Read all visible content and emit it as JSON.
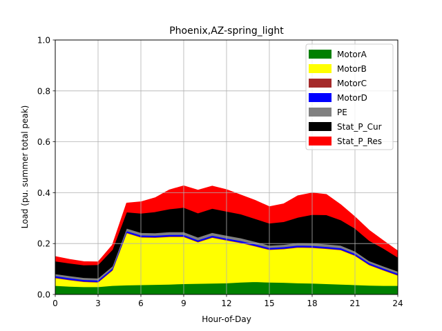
{
  "chart_data": {
    "type": "area",
    "stacked": true,
    "title": "Phoenix,AZ-spring_light",
    "xlabel": "Hour-of-Day",
    "ylabel": "Load (pu. summer total peak)",
    "xlim": [
      0,
      24
    ],
    "ylim": [
      0,
      1.0
    ],
    "xticks": [
      "0",
      "3",
      "6",
      "9",
      "12",
      "15",
      "18",
      "21",
      "24"
    ],
    "yticks": [
      "0.0",
      "0.2",
      "0.4",
      "0.6",
      "0.8",
      "1.0"
    ],
    "grid": true,
    "legend_position": "top-right",
    "x": [
      0,
      1,
      2,
      3,
      4,
      5,
      6,
      7,
      8,
      9,
      10,
      11,
      12,
      13,
      14,
      15,
      16,
      17,
      18,
      19,
      20,
      21,
      22,
      23,
      24
    ],
    "series": [
      {
        "name": "MotorA",
        "color": "#008000",
        "values": [
          0.035,
          0.032,
          0.03,
          0.03,
          0.035,
          0.037,
          0.038,
          0.039,
          0.04,
          0.042,
          0.043,
          0.044,
          0.045,
          0.048,
          0.05,
          0.048,
          0.047,
          0.045,
          0.044,
          0.042,
          0.04,
          0.038,
          0.036,
          0.035,
          0.035
        ]
      },
      {
        "name": "MotorB",
        "color": "#ffff00",
        "values": [
          0.03,
          0.025,
          0.02,
          0.018,
          0.06,
          0.205,
          0.187,
          0.185,
          0.187,
          0.185,
          0.163,
          0.18,
          0.168,
          0.155,
          0.14,
          0.128,
          0.132,
          0.14,
          0.14,
          0.138,
          0.135,
          0.115,
          0.08,
          0.06,
          0.04
        ]
      },
      {
        "name": "MotorC",
        "color": "#a52a2a",
        "values": [
          0.002,
          0.002,
          0.002,
          0.002,
          0.002,
          0.002,
          0.002,
          0.002,
          0.002,
          0.002,
          0.002,
          0.002,
          0.002,
          0.002,
          0.002,
          0.002,
          0.002,
          0.002,
          0.002,
          0.002,
          0.002,
          0.002,
          0.002,
          0.002,
          0.002
        ]
      },
      {
        "name": "MotorD",
        "color": "#0000ff",
        "values": [
          0.006,
          0.006,
          0.006,
          0.006,
          0.006,
          0.006,
          0.006,
          0.006,
          0.006,
          0.006,
          0.006,
          0.006,
          0.006,
          0.006,
          0.006,
          0.006,
          0.006,
          0.006,
          0.006,
          0.006,
          0.006,
          0.006,
          0.006,
          0.006,
          0.006
        ]
      },
      {
        "name": "PE",
        "color": "#808080",
        "values": [
          0.008,
          0.008,
          0.008,
          0.008,
          0.008,
          0.01,
          0.01,
          0.01,
          0.011,
          0.011,
          0.011,
          0.011,
          0.011,
          0.011,
          0.01,
          0.009,
          0.009,
          0.01,
          0.01,
          0.01,
          0.01,
          0.009,
          0.008,
          0.008,
          0.008
        ]
      },
      {
        "name": "Stat_P_Cur",
        "color": "#000000",
        "values": [
          0.05,
          0.05,
          0.05,
          0.053,
          0.065,
          0.064,
          0.076,
          0.083,
          0.09,
          0.096,
          0.095,
          0.095,
          0.095,
          0.094,
          0.09,
          0.087,
          0.09,
          0.1,
          0.112,
          0.115,
          0.1,
          0.09,
          0.08,
          0.07,
          0.055
        ]
      },
      {
        "name": "Stat_P_Res",
        "color": "#ff0000",
        "values": [
          0.018,
          0.015,
          0.013,
          0.011,
          0.018,
          0.035,
          0.045,
          0.055,
          0.075,
          0.085,
          0.09,
          0.088,
          0.085,
          0.075,
          0.072,
          0.065,
          0.07,
          0.085,
          0.085,
          0.08,
          0.06,
          0.045,
          0.04,
          0.03,
          0.025
        ]
      }
    ]
  }
}
